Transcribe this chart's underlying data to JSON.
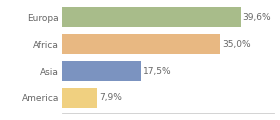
{
  "categories": [
    "Europa",
    "Africa",
    "Asia",
    "America"
  ],
  "values": [
    39.6,
    35.0,
    17.5,
    7.9
  ],
  "bar_colors": [
    "#a8bc8a",
    "#e8b882",
    "#7b93c0",
    "#f0d080"
  ],
  "labels": [
    "39,6%",
    "35,0%",
    "17,5%",
    "7,9%"
  ],
  "xlim": [
    0,
    47
  ],
  "background_color": "#ffffff",
  "bar_height": 0.75,
  "label_fontsize": 6.5,
  "tick_fontsize": 6.5,
  "label_color": "#666666",
  "tick_color": "#666666",
  "spine_color": "#cccccc"
}
